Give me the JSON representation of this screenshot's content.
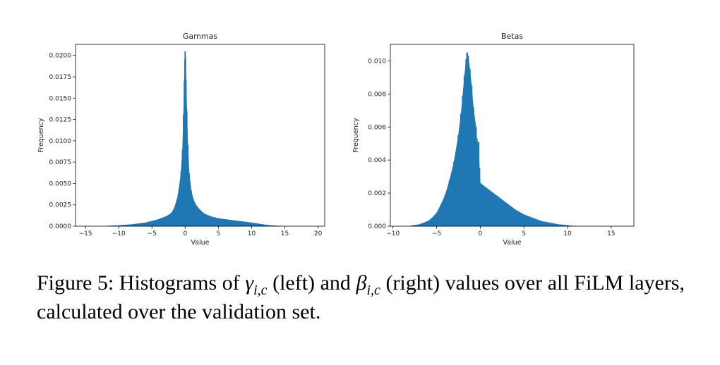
{
  "chart_data": [
    {
      "type": "bar",
      "title": "Gammas",
      "xlabel": "Value",
      "ylabel": "Frequency",
      "xlim": [
        -16.5,
        21
      ],
      "ylim": [
        0,
        0.0213
      ],
      "xticks": [
        "−15",
        "−10",
        "−5",
        "0",
        "5",
        "10",
        "15",
        "20"
      ],
      "xtick_values": [
        -15,
        -10,
        -5,
        0,
        5,
        10,
        15,
        20
      ],
      "yticks": [
        "0.0000",
        "0.0025",
        "0.0050",
        "0.0075",
        "0.0100",
        "0.0125",
        "0.0150",
        "0.0175",
        "0.0200"
      ],
      "ytick_values": [
        0,
        0.0025,
        0.005,
        0.0075,
        0.01,
        0.0125,
        0.015,
        0.0175,
        0.02
      ],
      "color": "#1f77b4",
      "bin_width": 0.2,
      "x": [
        -12,
        -10,
        -8,
        -6,
        -5,
        -4,
        -3,
        -2.5,
        -2,
        -1.6,
        -1.2,
        -0.9,
        -0.6,
        -0.4,
        -0.25,
        -0.12,
        -0.05,
        0,
        0.05,
        0.12,
        0.25,
        0.4,
        0.6,
        0.9,
        1.2,
        1.6,
        2,
        2.5,
        3,
        4,
        5,
        6,
        7,
        8,
        9,
        10,
        11,
        12,
        13,
        14,
        14.5
      ],
      "values": [
        2e-05,
        8e-05,
        0.0002,
        0.0004,
        0.0006,
        0.0008,
        0.0011,
        0.0013,
        0.0016,
        0.0022,
        0.0032,
        0.0045,
        0.0065,
        0.009,
        0.013,
        0.017,
        0.0195,
        0.0205,
        0.0198,
        0.0172,
        0.0135,
        0.0095,
        0.0062,
        0.0042,
        0.0032,
        0.0025,
        0.0021,
        0.0017,
        0.0014,
        0.0011,
        0.0009,
        0.0008,
        0.0007,
        0.0006,
        0.0005,
        0.0004,
        0.00028,
        0.00016,
        8e-05,
        3e-05,
        1e-05
      ]
    },
    {
      "type": "bar",
      "title": "Betas",
      "xlabel": "Value",
      "ylabel": "Frequency",
      "xlim": [
        -10.3,
        17.6
      ],
      "ylim": [
        0,
        0.011
      ],
      "xticks": [
        "−10",
        "−5",
        "0",
        "5",
        "10",
        "15"
      ],
      "xtick_values": [
        -10,
        -5,
        0,
        5,
        10,
        15
      ],
      "yticks": [
        "0.000",
        "0.002",
        "0.004",
        "0.006",
        "0.008",
        "0.010"
      ],
      "ytick_values": [
        0,
        0.002,
        0.004,
        0.006,
        0.008,
        0.01
      ],
      "color": "#1f77b4",
      "bin_width": 0.2,
      "x": [
        -8,
        -7,
        -6,
        -5.5,
        -5,
        -4.5,
        -4,
        -3.5,
        -3,
        -2.5,
        -2.2,
        -2,
        -1.8,
        -1.6,
        -1.5,
        -1.4,
        -1.2,
        -1,
        -0.8,
        -0.5,
        -0.4,
        -0.3,
        -0.2,
        -0.1,
        0,
        0.5,
        1,
        1.5,
        2,
        3,
        4,
        5,
        6,
        7,
        8,
        9,
        10,
        10.5,
        11
      ],
      "values": [
        2e-05,
        0.0001,
        0.0003,
        0.0005,
        0.0008,
        0.0013,
        0.0019,
        0.0028,
        0.0039,
        0.0055,
        0.0068,
        0.0079,
        0.0091,
        0.0101,
        0.0105,
        0.0103,
        0.0095,
        0.0085,
        0.0072,
        0.006,
        0.0053,
        0.0047,
        0.0051,
        0.0035,
        0.0026,
        0.0024,
        0.0022,
        0.002,
        0.0018,
        0.0014,
        0.001,
        0.0007,
        0.0005,
        0.0003,
        0.0002,
        0.0001,
        5e-05,
        2e-05,
        1e-05
      ]
    }
  ],
  "caption": {
    "part1": "Figure 5: Histograms of ",
    "gamma_symbol": "γ",
    "gamma_sub": "i,c",
    "part2": " (left) and ",
    "beta_symbol": "β",
    "beta_sub": "i,c",
    "part3": " (right) values over all FiLM layers, calculated over the validation set."
  }
}
